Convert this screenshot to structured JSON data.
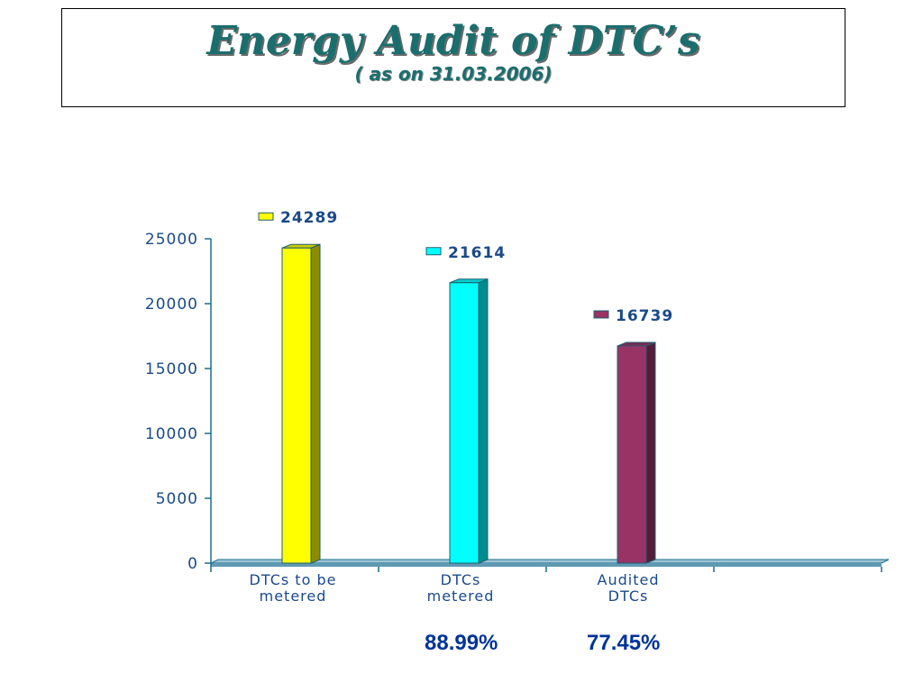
{
  "slide": {
    "title": "Energy Audit of DTC’s",
    "subtitle": "( as on 31.03.2006)",
    "percentages": [
      "88.99%",
      "77.45%"
    ]
  },
  "chart_data": {
    "type": "bar",
    "categories": [
      [
        "DTCs to be",
        "metered"
      ],
      [
        "DTCs",
        "metered"
      ],
      [
        "Audited",
        "DTCs"
      ],
      ""
    ],
    "series": [
      {
        "values": [
          24289,
          null,
          null,
          null
        ],
        "color": "#ffff00",
        "label": "24289"
      },
      {
        "values": [
          null,
          21614,
          null,
          null
        ],
        "color": "#00ffff",
        "label": "21614"
      },
      {
        "values": [
          null,
          null,
          16739,
          null
        ],
        "color": "#993366",
        "label": "16739"
      }
    ],
    "ylim": [
      0,
      25000
    ],
    "yticks": [
      0,
      5000,
      10000,
      15000,
      20000,
      25000
    ],
    "grid": false,
    "legend": "none",
    "axis_color": "#1a6e8a",
    "label_color": "#1a4a8a"
  }
}
